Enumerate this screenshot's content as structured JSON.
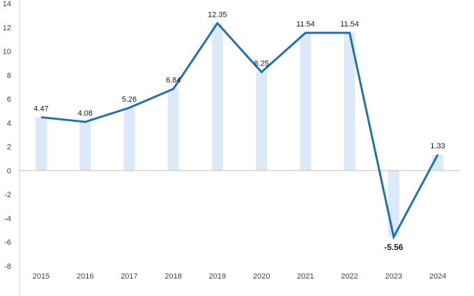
{
  "chart_data": {
    "type": "line",
    "categories": [
      "2015",
      "2016",
      "2017",
      "2018",
      "2019",
      "2020",
      "2021",
      "2022",
      "2023",
      "2024"
    ],
    "series": [
      {
        "values": [
          4.47,
          4.08,
          5.26,
          6.84,
          12.35,
          8.25,
          11.54,
          11.54,
          -5.56,
          1.33
        ],
        "data_labels": [
          "4.47",
          "4.08",
          "5.26",
          "6.84",
          "12.35",
          "8.25",
          "11.54",
          "11.54",
          "-5.56",
          "1.33"
        ],
        "color": "#1f6fb5"
      }
    ],
    "background_bars": {
      "values": [
        4.47,
        4.08,
        5.26,
        6.84,
        12.35,
        8.25,
        11.54,
        11.54,
        -5.56,
        1.33
      ],
      "color": "#dce9f6"
    },
    "y_ticks": [
      "-8",
      "-6",
      "-4",
      "-2",
      "0",
      "2",
      "4",
      "6",
      "8",
      "10",
      "12",
      "14"
    ],
    "ylim": [
      -8,
      14
    ],
    "grid": false,
    "legend": "none"
  }
}
